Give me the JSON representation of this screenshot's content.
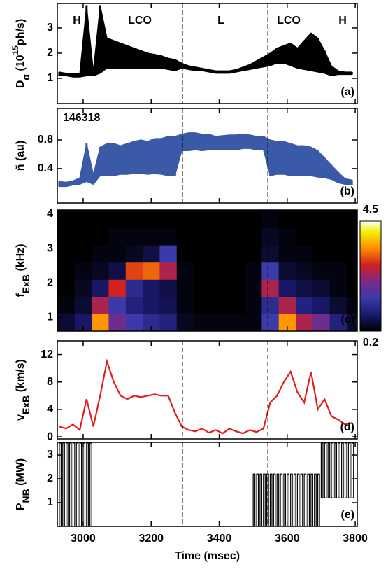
{
  "chart_data": [
    {
      "type": "band",
      "panel_label": "(a)",
      "ylabel": [
        {
          "text": "D"
        },
        {
          "text": "α",
          "sub": true
        },
        {
          "text": " (10"
        },
        {
          "text": "15",
          "sup": true
        },
        {
          "text": "ph/s)"
        }
      ],
      "annotations": [
        {
          "text": "H",
          "color": "#e03030"
        },
        {
          "text": "LCO",
          "color": "#b030b0"
        },
        {
          "text": "L",
          "color": "#208040"
        },
        {
          "text": "LCO",
          "color": "#b030b0"
        },
        {
          "text": "H",
          "color": "#e03030"
        }
      ],
      "x": [
        2930,
        2950,
        2970,
        2990,
        3010,
        3030,
        3050,
        3070,
        3090,
        3110,
        3130,
        3150,
        3170,
        3190,
        3210,
        3230,
        3250,
        3270,
        3290,
        3310,
        3330,
        3350,
        3370,
        3390,
        3410,
        3430,
        3450,
        3470,
        3490,
        3510,
        3530,
        3550,
        3570,
        3590,
        3610,
        3630,
        3650,
        3670,
        3690,
        3710,
        3730,
        3750,
        3770,
        3790
      ],
      "series": [
        {
          "color": "#000000",
          "values": [
            1.1,
            1.1,
            1.05,
            1.05,
            1.1,
            1.1,
            1.2,
            1.4,
            1.4,
            1.4,
            1.4,
            1.4,
            1.4,
            1.4,
            1.4,
            1.4,
            1.35,
            1.3,
            1.4,
            1.35,
            1.3,
            1.3,
            1.25,
            1.2,
            1.2,
            1.2,
            1.25,
            1.3,
            1.35,
            1.4,
            1.45,
            1.5,
            1.6,
            1.6,
            1.5,
            1.4,
            1.35,
            1.3,
            1.25,
            1.2,
            1.1,
            1.15,
            1.15,
            1.15
          ]
        },
        {
          "color": "#000000",
          "values": [
            1.25,
            1.2,
            1.2,
            1.2,
            3.9,
            1.3,
            3.9,
            2.6,
            2.5,
            2.4,
            2.3,
            2.2,
            2.1,
            2.0,
            1.95,
            1.9,
            1.8,
            1.75,
            1.6,
            1.5,
            1.45,
            1.4,
            1.35,
            1.3,
            1.3,
            1.3,
            1.35,
            1.45,
            1.55,
            1.7,
            1.85,
            2.0,
            2.2,
            2.3,
            2.4,
            2.2,
            2.5,
            2.8,
            2.6,
            2.1,
            1.5,
            1.3,
            1.25,
            1.25
          ]
        }
      ],
      "xlim": [
        2924,
        3806
      ],
      "ylim": [
        0,
        3.97
      ],
      "xticks": [
        3000,
        3200,
        3400,
        3600,
        3800
      ],
      "yticks": [
        1,
        2,
        3
      ],
      "vlines": [
        3292,
        3543
      ]
    },
    {
      "type": "band",
      "panel_label": "(b)",
      "ylabel": [
        {
          "text": "ñ (au)"
        }
      ],
      "shot": "146318",
      "x": [
        2930,
        2950,
        2970,
        2990,
        3010,
        3030,
        3050,
        3070,
        3090,
        3110,
        3130,
        3150,
        3170,
        3190,
        3210,
        3230,
        3250,
        3270,
        3290,
        3310,
        3330,
        3350,
        3370,
        3390,
        3410,
        3430,
        3450,
        3470,
        3490,
        3510,
        3530,
        3550,
        3570,
        3590,
        3610,
        3630,
        3650,
        3670,
        3690,
        3710,
        3730,
        3750,
        3770,
        3790
      ],
      "series": [
        {
          "color": "#3a5aa8",
          "values": [
            0.15,
            0.15,
            0.17,
            0.18,
            0.22,
            0.18,
            0.3,
            0.3,
            0.3,
            0.32,
            0.32,
            0.33,
            0.33,
            0.32,
            0.33,
            0.32,
            0.3,
            0.3,
            0.65,
            0.65,
            0.66,
            0.65,
            0.66,
            0.66,
            0.66,
            0.66,
            0.66,
            0.68,
            0.68,
            0.66,
            0.66,
            0.3,
            0.32,
            0.32,
            0.3,
            0.3,
            0.3,
            0.3,
            0.28,
            0.27,
            0.25,
            0.2,
            0.18,
            0.17
          ]
        },
        {
          "color": "#3a5aa8",
          "values": [
            0.22,
            0.21,
            0.23,
            0.27,
            0.75,
            0.32,
            0.7,
            0.75,
            0.75,
            0.72,
            0.75,
            0.78,
            0.8,
            0.78,
            0.82,
            0.82,
            0.85,
            0.85,
            0.88,
            0.9,
            0.9,
            0.88,
            0.88,
            0.85,
            0.86,
            0.87,
            0.87,
            0.88,
            0.87,
            0.85,
            0.85,
            0.8,
            0.78,
            0.78,
            0.75,
            0.72,
            0.72,
            0.7,
            0.65,
            0.55,
            0.45,
            0.35,
            0.26,
            0.24
          ]
        }
      ],
      "xlim": [
        2924,
        3806
      ],
      "ylim": [
        -0.08,
        1.24
      ],
      "xticks": [
        3000,
        3200,
        3400,
        3600,
        3800
      ],
      "yticks": [
        0.4,
        0.8
      ],
      "vlines": [
        3292,
        3543
      ]
    },
    {
      "type": "heatmap",
      "panel_label": "(c)",
      "ylabel": [
        {
          "text": "f"
        },
        {
          "text": "ExB",
          "sub": true
        },
        {
          "text": " (kHz)"
        }
      ],
      "x": [
        2950,
        3000,
        3050,
        3100,
        3150,
        3200,
        3250,
        3300,
        3350,
        3400,
        3450,
        3500,
        3550,
        3600,
        3650,
        3700,
        3750,
        3800
      ],
      "y": [
        0.85,
        1.35,
        1.85,
        2.35,
        2.85,
        3.35,
        3.85
      ],
      "z": [
        [
          0.5,
          0.8,
          3.5,
          2.0,
          1.5,
          1.2,
          1.0,
          0.4,
          0.3,
          0.3,
          0.3,
          0.3,
          1.5,
          3.5,
          2.5,
          2.0,
          1.0,
          0.5
        ],
        [
          0.3,
          0.5,
          2.5,
          1.5,
          1.0,
          0.8,
          0.7,
          0.3,
          0.2,
          0.2,
          0.2,
          0.3,
          1.2,
          2.5,
          1.0,
          0.8,
          0.5,
          0.3
        ],
        [
          0.2,
          0.4,
          0.8,
          2.8,
          1.2,
          0.8,
          0.6,
          0.3,
          0.2,
          0.2,
          0.2,
          0.3,
          2.5,
          0.8,
          0.6,
          0.5,
          0.3,
          0.2
        ],
        [
          0.2,
          0.3,
          0.4,
          0.6,
          3.0,
          3.2,
          2.5,
          0.3,
          0.2,
          0.2,
          0.2,
          0.3,
          1.5,
          0.5,
          0.4,
          0.3,
          0.3,
          0.2
        ],
        [
          0.2,
          0.2,
          0.3,
          0.3,
          0.4,
          0.6,
          1.5,
          0.2,
          0.2,
          0.2,
          0.2,
          0.2,
          0.5,
          0.3,
          0.3,
          0.2,
          0.2,
          0.2
        ],
        [
          0.2,
          0.2,
          0.2,
          0.3,
          0.3,
          0.3,
          0.3,
          0.2,
          0.2,
          0.2,
          0.2,
          0.2,
          0.4,
          0.3,
          0.2,
          0.2,
          0.2,
          0.2
        ],
        [
          0.2,
          0.2,
          0.2,
          0.2,
          0.2,
          0.2,
          0.2,
          0.2,
          0.2,
          0.2,
          0.2,
          0.2,
          0.3,
          0.2,
          0.2,
          0.2,
          0.2,
          0.2
        ]
      ],
      "clim": [
        0.2,
        4.5
      ],
      "colorbar_ticks": [
        0.2,
        4.5
      ],
      "xlim": [
        2924,
        3806
      ],
      "ylim": [
        0.6,
        4.12
      ],
      "xticks": [
        3000,
        3200,
        3400,
        3600,
        3800
      ],
      "yticks": [
        1,
        2,
        3,
        4
      ],
      "vlines": [
        3292,
        3543
      ]
    },
    {
      "type": "line",
      "panel_label": "(d)",
      "ylabel": [
        {
          "text": "v"
        },
        {
          "text": "ExB",
          "sub": true
        },
        {
          "text": " (km/s)"
        }
      ],
      "x": [
        2930,
        2950,
        2970,
        2990,
        3010,
        3030,
        3050,
        3070,
        3090,
        3110,
        3130,
        3150,
        3170,
        3190,
        3210,
        3230,
        3250,
        3270,
        3290,
        3310,
        3330,
        3350,
        3370,
        3390,
        3410,
        3430,
        3450,
        3470,
        3490,
        3510,
        3530,
        3550,
        3570,
        3590,
        3610,
        3630,
        3650,
        3670,
        3690,
        3710,
        3730,
        3750,
        3770,
        3790
      ],
      "series": [
        {
          "color": "#e02020",
          "values": [
            1.5,
            1.2,
            1.8,
            1.0,
            5.5,
            1.5,
            6,
            11,
            8,
            6,
            5.5,
            6,
            5.8,
            6,
            6.2,
            6,
            6,
            3.5,
            1.5,
            1,
            0.8,
            1.2,
            0.6,
            1,
            0.5,
            1.2,
            0.8,
            0.5,
            1.0,
            0.7,
            1.2,
            5,
            6,
            8,
            9.5,
            6.5,
            5,
            9.5,
            4,
            5.5,
            3,
            2.5,
            1.8,
            2.0
          ]
        }
      ],
      "xlim": [
        2924,
        3806
      ],
      "ylim": [
        -0.3,
        14
      ],
      "xticks": [
        3000,
        3200,
        3400,
        3600,
        3800
      ],
      "yticks": [
        0,
        4,
        8,
        12
      ],
      "vlines": [
        3292,
        3543
      ]
    },
    {
      "type": "pulse",
      "panel_label": "(e)",
      "ylabel": [
        {
          "text": "P"
        },
        {
          "text": "NB",
          "sub": true
        },
        {
          "text": " (MW)"
        }
      ],
      "xlabel": "Time (msec)",
      "x": [
        2930,
        2940,
        2950,
        2960,
        2970,
        2980,
        2990,
        3000,
        3010,
        3020,
        3500,
        3510,
        3520,
        3530,
        3540,
        3550,
        3560,
        3570,
        3580,
        3590,
        3600,
        3610,
        3620,
        3630,
        3640,
        3650,
        3660,
        3670,
        3680,
        3690,
        3700,
        3710,
        3720,
        3730,
        3740,
        3750,
        3760,
        3770,
        3780,
        3790
      ],
      "values": [
        3.5,
        3.5,
        3.5,
        3.5,
        3.5,
        3.5,
        3.5,
        3.5,
        3.5,
        3.5,
        2.2,
        2.2,
        2.2,
        2.2,
        2.2,
        2.2,
        2.2,
        2.2,
        2.2,
        2.2,
        2.2,
        2.2,
        2.2,
        2.2,
        2.2,
        2.2,
        2.2,
        2.2,
        2.2,
        2.2,
        3.5,
        3.5,
        3.5,
        3.5,
        3.5,
        3.5,
        3.5,
        3.5,
        3.5,
        3.5
      ],
      "base": [
        0,
        0,
        0,
        0,
        0,
        0,
        0,
        0,
        0,
        0,
        0,
        0,
        0,
        0,
        0,
        0,
        0,
        0,
        0,
        0,
        0,
        0,
        0,
        0,
        0,
        0,
        0,
        0,
        0,
        0,
        1.2,
        1.2,
        1.2,
        1.2,
        1.2,
        1.2,
        1.2,
        1.2,
        1.2,
        1.2
      ],
      "xlim": [
        2924,
        3806
      ],
      "ylim": [
        0,
        3.53
      ],
      "xticks": [
        3000,
        3200,
        3400,
        3600,
        3800
      ],
      "yticks": [
        1,
        2,
        3
      ],
      "vlines": [
        3292,
        3543
      ],
      "show_xtick_labels": true
    }
  ]
}
